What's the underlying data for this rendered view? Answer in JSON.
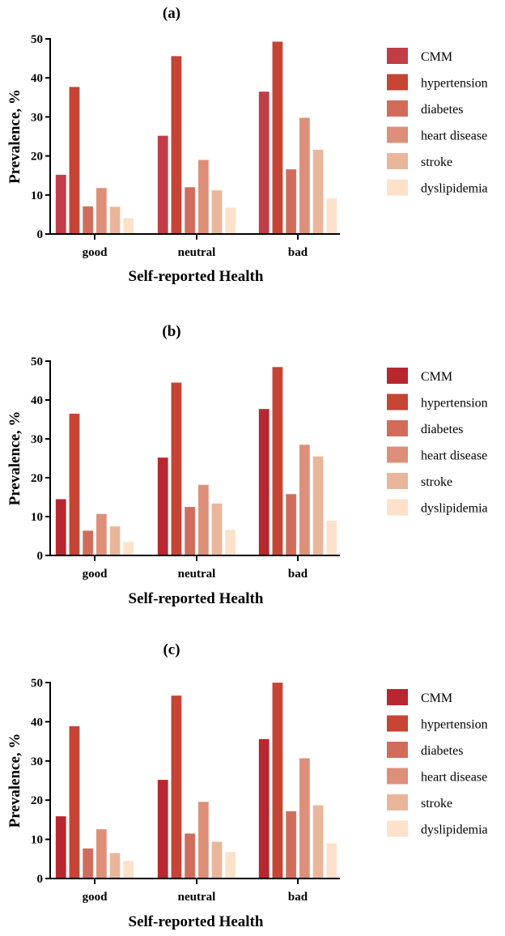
{
  "colors": {
    "CMM_a": "#c23d47",
    "CMM_bc": "#b8262f",
    "hypertension": "#c54434",
    "diabetes": "#d26c5a",
    "heart disease": "#dd8f79",
    "stroke": "#e9b69b",
    "dyslipidemia": "#fde1ca"
  },
  "chart_data": [
    {
      "type": "bar",
      "title": "(a)",
      "xlabel": "Self-reported Health",
      "ylabel": "Prevalence,  %",
      "ylim": [
        0,
        50
      ],
      "yticks": [
        "0",
        "10",
        "20",
        "30",
        "40",
        "50"
      ],
      "categories": [
        "good",
        "neutral",
        "bad"
      ],
      "legend_position": "right",
      "series": [
        {
          "name": "CMM",
          "values": [
            15.2,
            25.2,
            36.5
          ]
        },
        {
          "name": "hypertension",
          "values": [
            37.7,
            45.6,
            49.3
          ]
        },
        {
          "name": "diabetes",
          "values": [
            7.1,
            12.0,
            16.6
          ]
        },
        {
          "name": "heart disease",
          "values": [
            11.8,
            19.0,
            29.8
          ]
        },
        {
          "name": "stroke",
          "values": [
            7.0,
            11.2,
            21.6
          ]
        },
        {
          "name": "dyslipidemia",
          "values": [
            4.1,
            6.8,
            9.1
          ]
        }
      ]
    },
    {
      "type": "bar",
      "title": "(b)",
      "xlabel": "Self-reported Health",
      "ylabel": "Prevalence,  %",
      "ylim": [
        0,
        50
      ],
      "yticks": [
        "0",
        "10",
        "20",
        "30",
        "40",
        "50"
      ],
      "categories": [
        "good",
        "neutral",
        "bad"
      ],
      "legend_position": "right",
      "series": [
        {
          "name": "CMM",
          "values": [
            14.5,
            25.2,
            37.7
          ]
        },
        {
          "name": "hypertension",
          "values": [
            36.5,
            44.5,
            48.5
          ]
        },
        {
          "name": "diabetes",
          "values": [
            6.4,
            12.5,
            15.8
          ]
        },
        {
          "name": "heart disease",
          "values": [
            10.7,
            18.2,
            28.5
          ]
        },
        {
          "name": "stroke",
          "values": [
            7.5,
            13.4,
            25.5
          ]
        },
        {
          "name": "dyslipidemia",
          "values": [
            3.5,
            6.6,
            9.0
          ]
        }
      ]
    },
    {
      "type": "bar",
      "title": "(c)",
      "xlabel": "Self-reported Health",
      "ylabel": "Prevalence,  %",
      "ylim": [
        0,
        50
      ],
      "yticks": [
        "0",
        "10",
        "20",
        "30",
        "40",
        "50"
      ],
      "categories": [
        "good",
        "neutral",
        "bad"
      ],
      "legend_position": "right",
      "series": [
        {
          "name": "CMM",
          "values": [
            15.9,
            25.2,
            35.6
          ]
        },
        {
          "name": "hypertension",
          "values": [
            38.9,
            46.7,
            50.0
          ]
        },
        {
          "name": "diabetes",
          "values": [
            7.7,
            11.5,
            17.2
          ]
        },
        {
          "name": "heart disease",
          "values": [
            12.6,
            19.6,
            30.7
          ]
        },
        {
          "name": "stroke",
          "values": [
            6.5,
            9.4,
            18.7
          ]
        },
        {
          "name": "dyslipidemia",
          "values": [
            4.5,
            6.8,
            9.0
          ]
        }
      ]
    }
  ]
}
